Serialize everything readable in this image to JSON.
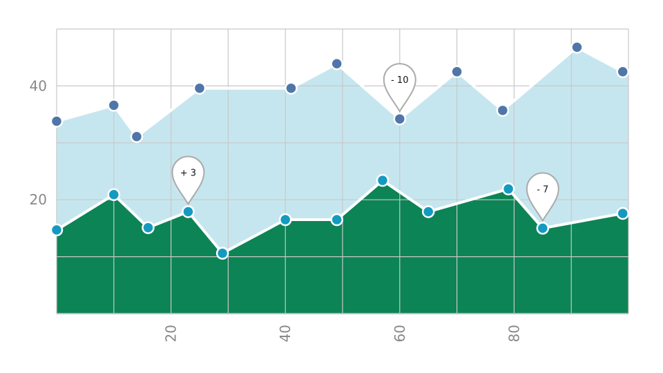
{
  "chart_data": {
    "type": "area",
    "xlim": [
      0,
      100
    ],
    "ylim": [
      0,
      50
    ],
    "grid": true,
    "x_ticks": [
      {
        "value": 20,
        "label": "20"
      },
      {
        "value": 40,
        "label": "40"
      },
      {
        "value": 60,
        "label": "60"
      },
      {
        "value": 80,
        "label": "80"
      }
    ],
    "y_ticks": [
      {
        "value": 20,
        "label": "20"
      },
      {
        "value": 40,
        "label": "40"
      }
    ],
    "series": [
      {
        "fill": "#c6e6ef",
        "marker_color": "#4f76a8",
        "points": [
          [
            0,
            33.8
          ],
          [
            10,
            36.6
          ],
          [
            14,
            31.1
          ],
          [
            25,
            39.6
          ],
          [
            41,
            39.6
          ],
          [
            49,
            43.9
          ],
          [
            60,
            34.2
          ],
          [
            70,
            42.5
          ],
          [
            78,
            35.7
          ],
          [
            91,
            46.8
          ],
          [
            99,
            42.5
          ]
        ]
      },
      {
        "fill": "#0c8456",
        "marker_color": "#149ac0",
        "points": [
          [
            0,
            14.7
          ],
          [
            10,
            20.9
          ],
          [
            16,
            15.1
          ],
          [
            23,
            17.9
          ],
          [
            29,
            10.6
          ],
          [
            40,
            16.5
          ],
          [
            49,
            16.5
          ],
          [
            57,
            23.4
          ],
          [
            65,
            17.9
          ],
          [
            79,
            21.9
          ],
          [
            85,
            15.0
          ],
          [
            99,
            17.6
          ]
        ]
      }
    ],
    "annotations": [
      {
        "series": 1,
        "point": 3,
        "label": "+ 3"
      },
      {
        "series": 0,
        "point": 6,
        "label": "- 10"
      },
      {
        "series": 1,
        "point": 10,
        "label": "- 7"
      }
    ],
    "colors": {
      "grid": "#c8c8c8",
      "axis": "#bbbbbb",
      "line": "#ffffff",
      "pin_stroke": "#aaaaaa"
    }
  }
}
